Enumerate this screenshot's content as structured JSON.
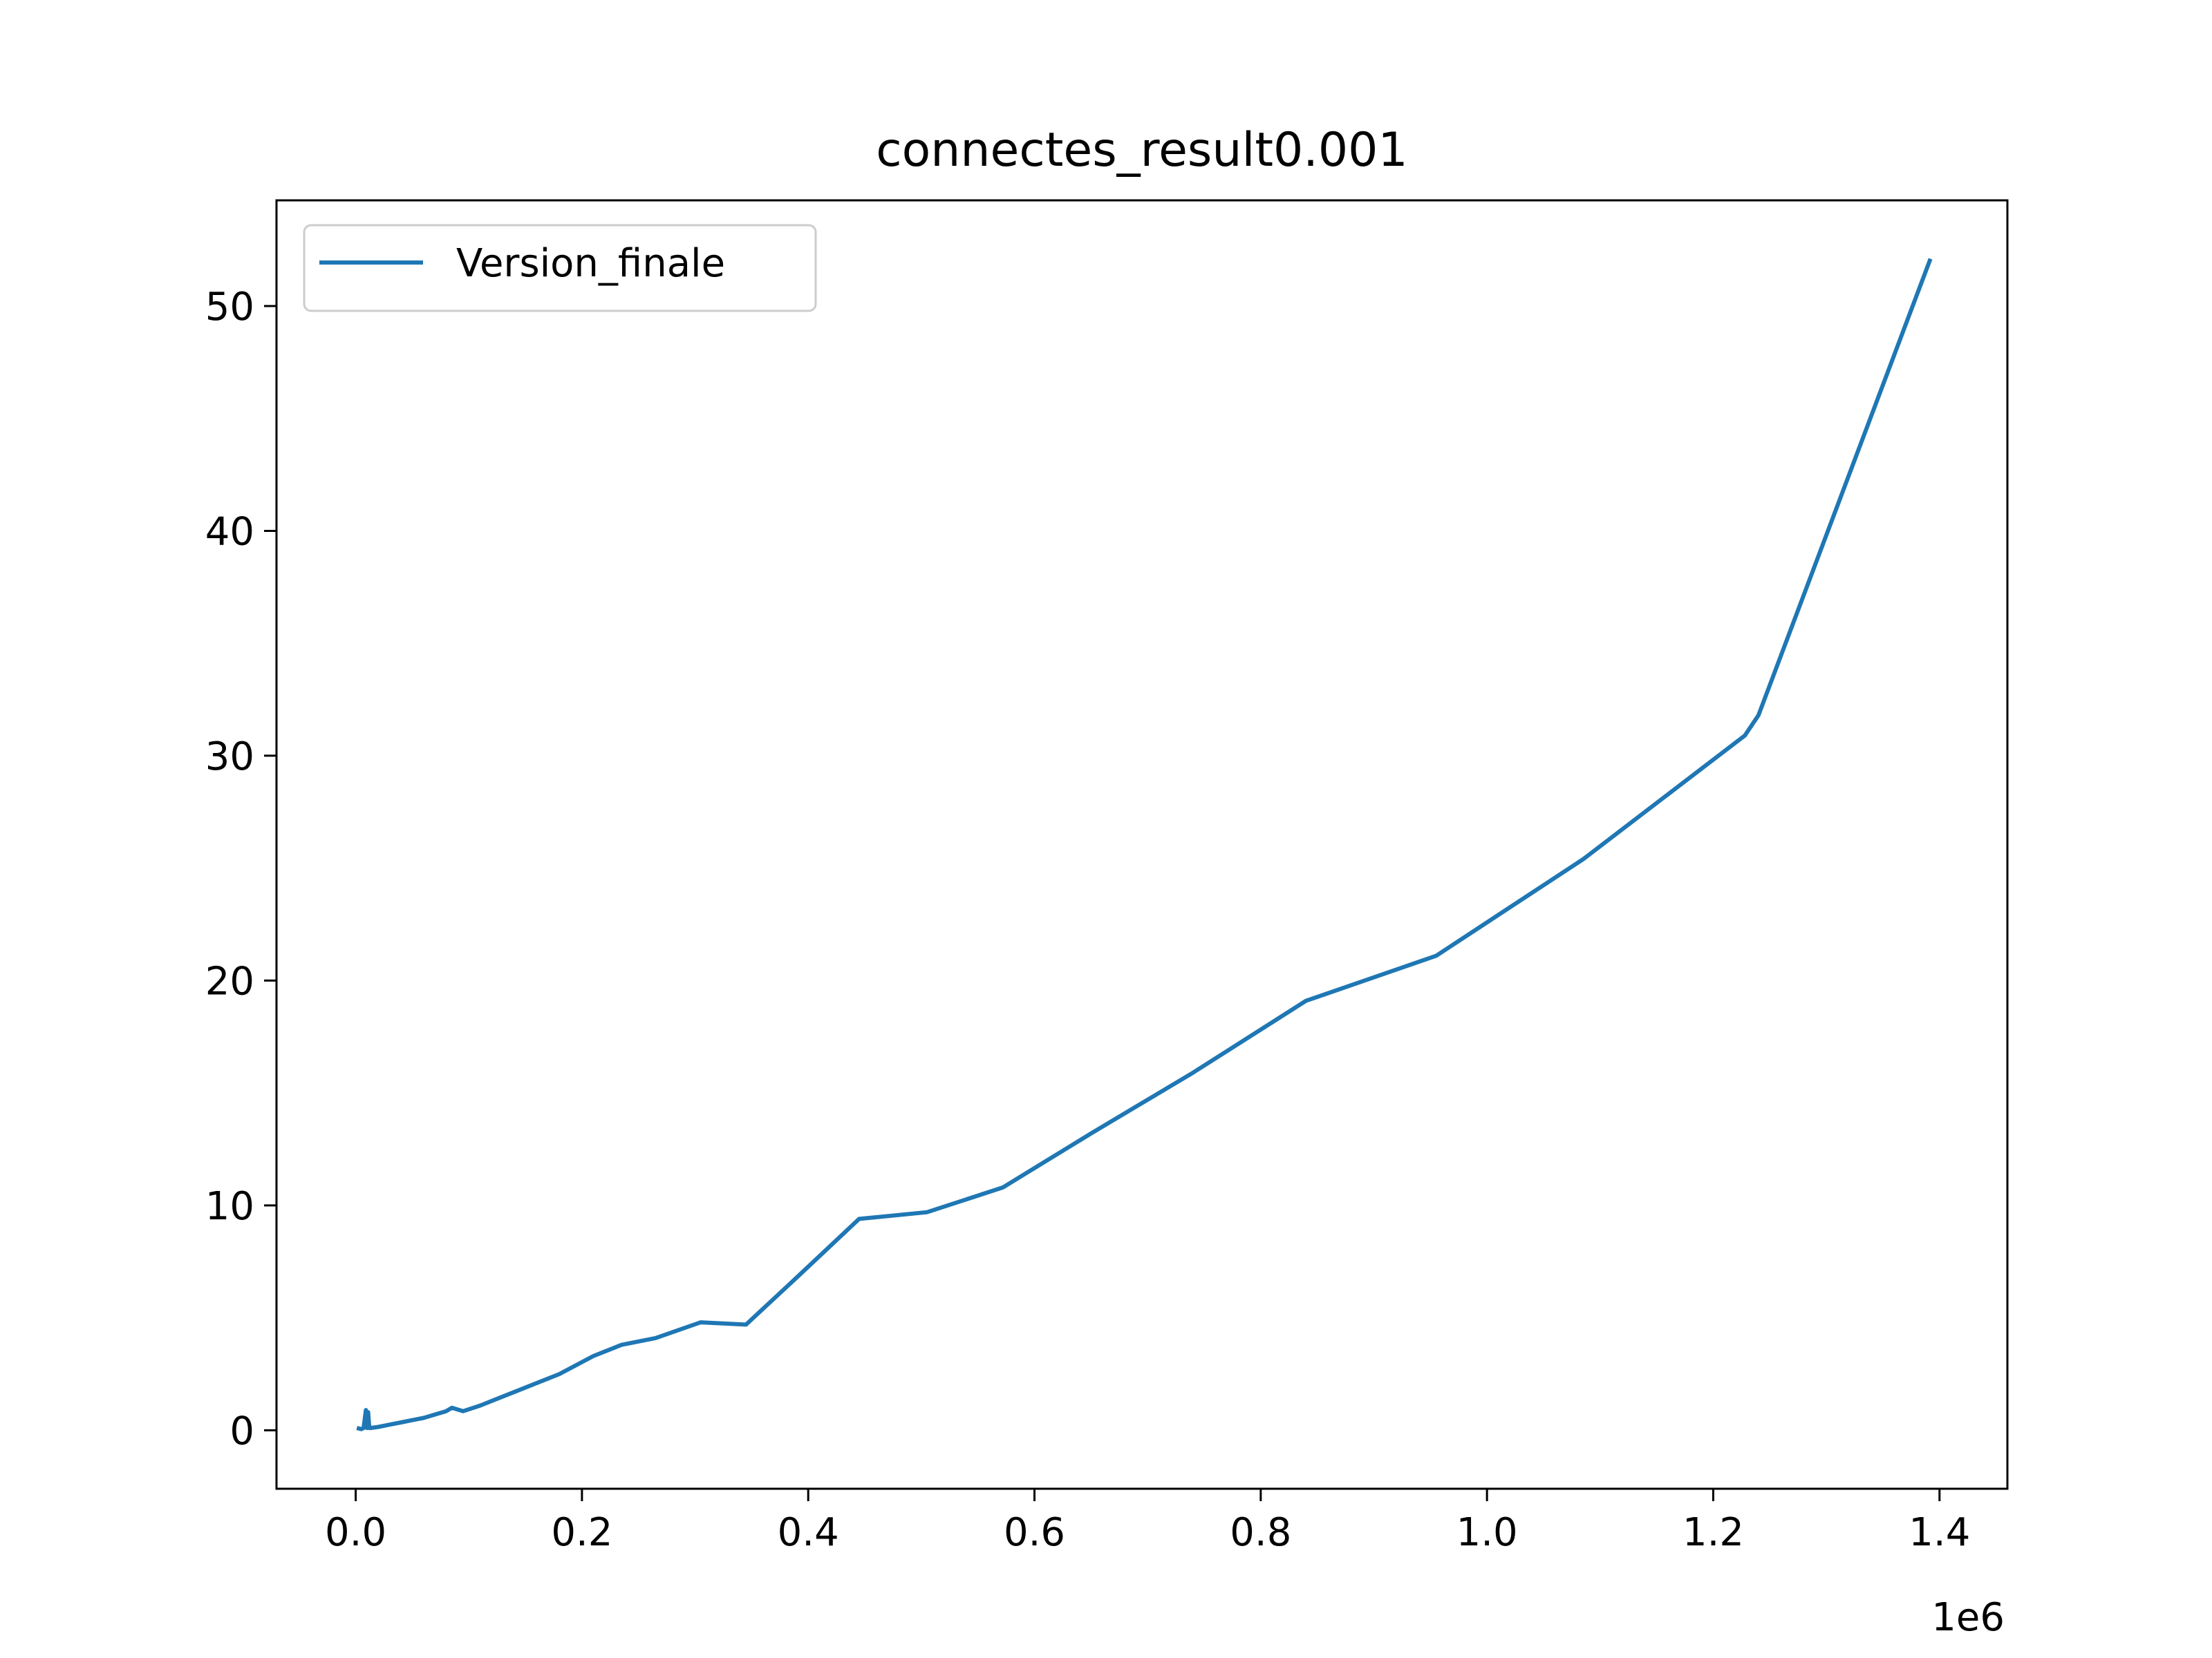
{
  "chart_data": {
    "type": "line",
    "title": "connectes_result0.001",
    "xlabel": "",
    "ylabel": "",
    "x_offset_text": "1e6",
    "xlim": [
      -70000,
      1460000
    ],
    "ylim": [
      -2.6,
      54.7
    ],
    "xticks": [
      0,
      200000,
      400000,
      600000,
      800000,
      1000000,
      1200000,
      1400000
    ],
    "xtick_labels": [
      "0.0",
      "0.2",
      "0.4",
      "0.6",
      "0.8",
      "1.0",
      "1.2",
      "1.4"
    ],
    "yticks": [
      0,
      10,
      20,
      30,
      40,
      50
    ],
    "ytick_labels": [
      "0",
      "10",
      "20",
      "30",
      "40",
      "50"
    ],
    "grid": false,
    "legend_position": "upper-left",
    "series": [
      {
        "name": "Version_finale",
        "color": "#1f77b4",
        "x": [
          1000,
          5000,
          7000,
          9000,
          10000,
          11000,
          12000,
          13000,
          20000,
          30000,
          40000,
          50000,
          60000,
          70000,
          80000,
          85000,
          95000,
          110000,
          125000,
          145000,
          180000,
          210000,
          235000,
          265000,
          305000,
          345000,
          390000,
          445000,
          505000,
          572000,
          650000,
          740000,
          840000,
          955000,
          1085000,
          1228000,
          1240000,
          1392000
        ],
        "y": [
          0.1,
          0.05,
          0.1,
          0.9,
          0.1,
          0.8,
          0.1,
          0.1,
          0.15,
          0.25,
          0.35,
          0.45,
          0.55,
          0.7,
          0.85,
          1.0,
          0.85,
          1.1,
          1.4,
          1.8,
          2.5,
          3.3,
          3.8,
          4.1,
          4.8,
          4.7,
          6.8,
          9.4,
          9.7,
          10.8,
          13.2,
          15.9,
          19.1,
          21.1,
          25.4,
          30.9,
          31.8,
          52.1
        ]
      }
    ]
  }
}
